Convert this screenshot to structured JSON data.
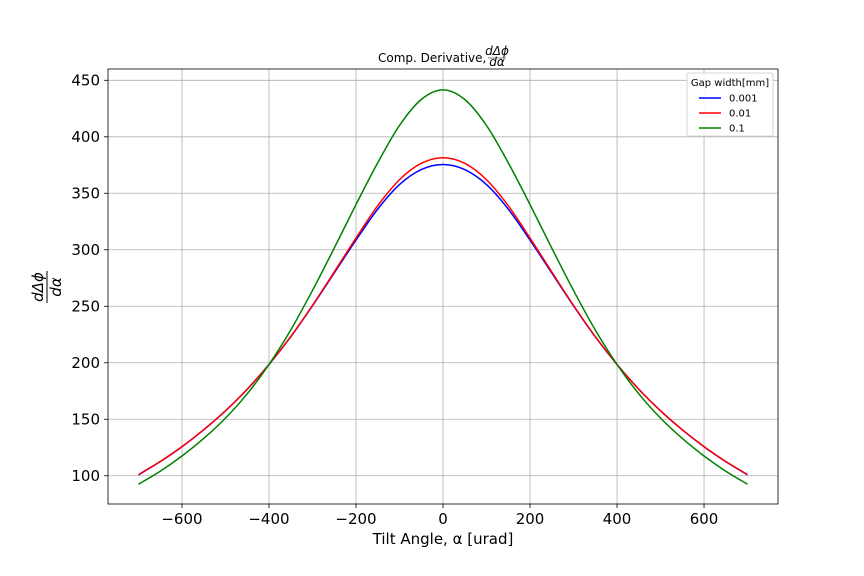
{
  "chart_data": {
    "type": "line",
    "title": "Comp. Derivative, dΔϕ/dα",
    "title_prefix": "Comp. Derivative,",
    "title_frac_num": "dΔϕ",
    "title_frac_den": "dα",
    "xlabel": "Tilt Angle, α [urad]",
    "ylabel_num": "dΔϕ",
    "ylabel_den": "dα",
    "xlim": [
      -770,
      770
    ],
    "ylim": [
      75,
      460
    ],
    "xticks": [
      -600,
      -400,
      -200,
      0,
      200,
      400,
      600
    ],
    "xtick_labels": [
      "−600",
      "−400",
      "−200",
      "0",
      "200",
      "400",
      "600"
    ],
    "yticks": [
      100,
      150,
      200,
      250,
      300,
      350,
      400,
      450
    ],
    "ytick_labels": [
      "100",
      "150",
      "200",
      "250",
      "300",
      "350",
      "400",
      "450"
    ],
    "grid": true,
    "legend": {
      "title": "Gap width[mm]",
      "placement": "top-right"
    },
    "x": [
      -700,
      -650,
      -600,
      -550,
      -500,
      -450,
      -400,
      -350,
      -300,
      -250,
      -200,
      -150,
      -100,
      -50,
      0,
      50,
      100,
      150,
      200,
      250,
      300,
      350,
      400,
      450,
      500,
      550,
      600,
      650,
      700
    ],
    "series": [
      {
        "name": "0.001",
        "color": "#0000ff",
        "values": [
          100.8,
          112.5,
          125.7,
          140.7,
          157.5,
          176.6,
          198.5,
          223.0,
          250.4,
          279.5,
          308.6,
          336.0,
          357.7,
          371.0,
          375.5,
          371.0,
          357.7,
          336.0,
          308.6,
          279.5,
          250.4,
          223.0,
          198.5,
          176.6,
          157.5,
          140.7,
          125.7,
          112.5,
          100.8
        ]
      },
      {
        "name": "0.01",
        "color": "#ff0000",
        "values": [
          101.0,
          112.6,
          125.8,
          140.8,
          157.5,
          176.6,
          198.5,
          223.2,
          250.8,
          280.4,
          310.4,
          339.0,
          362.0,
          376.5,
          381.5,
          376.5,
          362.0,
          339.0,
          310.4,
          280.4,
          250.8,
          223.2,
          198.5,
          176.6,
          157.5,
          140.8,
          125.8,
          112.6,
          101.0
        ]
      },
      {
        "name": "0.1",
        "color": "#008000",
        "values": [
          92.5,
          104.0,
          117.5,
          133.0,
          151.0,
          172.5,
          198.5,
          229.0,
          264.0,
          301.5,
          340.0,
          377.0,
          410.0,
          433.0,
          441.5,
          433.0,
          410.0,
          377.0,
          340.0,
          301.5,
          264.0,
          229.0,
          198.5,
          172.5,
          151.0,
          133.0,
          117.5,
          104.0,
          92.5
        ]
      }
    ]
  }
}
